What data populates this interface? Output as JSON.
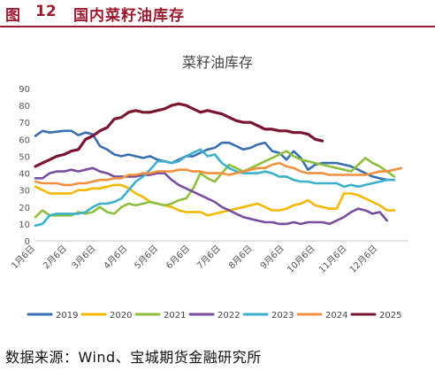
{
  "header": {
    "figure_label": "图",
    "figure_number": "12",
    "figure_title": "国内菜籽油库存"
  },
  "source": "数据来源：Wind、宝城期货金融研究所",
  "chart_data": {
    "type": "line",
    "title": "菜籽油库存",
    "xlabel": "",
    "ylabel": "",
    "ylim": [
      0,
      90
    ],
    "yticks": [
      "0",
      "10",
      "20",
      "30",
      "40",
      "50",
      "60",
      "70",
      "80",
      "90"
    ],
    "xlim": [
      0,
      52
    ],
    "xticks": [
      {
        "label": "1月6日",
        "x": 0
      },
      {
        "label": "2月6日",
        "x": 4.43
      },
      {
        "label": "3月6日",
        "x": 8.43
      },
      {
        "label": "4月6日",
        "x": 12.86
      },
      {
        "label": "5月6日",
        "x": 17.14
      },
      {
        "label": "6月6日",
        "x": 21.57
      },
      {
        "label": "7月6日",
        "x": 25.86
      },
      {
        "label": "8月6日",
        "x": 30.29
      },
      {
        "label": "9月6日",
        "x": 34.71
      },
      {
        "label": "10月6日",
        "x": 39.0
      },
      {
        "label": "11月6日",
        "x": 43.43
      },
      {
        "label": "12月6日",
        "x": 47.71
      }
    ],
    "grid": false,
    "legend_position": "bottom",
    "series": [
      {
        "name": "2019",
        "color": "#3a6fb0",
        "values": [
          62,
          65,
          64,
          64.5,
          65,
          65,
          62.5,
          64,
          63,
          56,
          54,
          51,
          50,
          51,
          50,
          49,
          50,
          48,
          47,
          46,
          48,
          50,
          50,
          52,
          54,
          55,
          58,
          58,
          56,
          54,
          55,
          57,
          58,
          53,
          52,
          48,
          53,
          49,
          42,
          45,
          46,
          46,
          46,
          45,
          44,
          42,
          40,
          38,
          37,
          36,
          36
        ]
      },
      {
        "name": "2020",
        "color": "#f5b800",
        "values": [
          32,
          30,
          28,
          28,
          28,
          28,
          30,
          30,
          31,
          31,
          32,
          33,
          33,
          31,
          28,
          26,
          23,
          22,
          21,
          20,
          18,
          17,
          17,
          17,
          15,
          16,
          17,
          18,
          19,
          20,
          21,
          22,
          20,
          18,
          18,
          19,
          21,
          22,
          24,
          21,
          20,
          19,
          19,
          28,
          28,
          27,
          25,
          23,
          21,
          18,
          18
        ]
      },
      {
        "name": "2021",
        "color": "#8dbf3f",
        "values": [
          14,
          18,
          15,
          15,
          15,
          15,
          17,
          16,
          17,
          20,
          17,
          16,
          20,
          22,
          21,
          22,
          23,
          22,
          21,
          22,
          24,
          25,
          31,
          40,
          37,
          35,
          40,
          45,
          43,
          41,
          43,
          45,
          47,
          49,
          51,
          53,
          50,
          48,
          47,
          46,
          45,
          44,
          43,
          42,
          41,
          45,
          49,
          46,
          44,
          41,
          38
        ]
      },
      {
        "name": "2022",
        "color": "#7a4e9e",
        "values": [
          37,
          37,
          40,
          41,
          41,
          42,
          41,
          42,
          43,
          41,
          40,
          38,
          38,
          38,
          38,
          39,
          39,
          40,
          40,
          36,
          33,
          31,
          29,
          27,
          25,
          23,
          20,
          18,
          16,
          14,
          13,
          12,
          11,
          11,
          10,
          10,
          11,
          10,
          11,
          11,
          11,
          10,
          12,
          14,
          17,
          19,
          18,
          16,
          17,
          12
        ]
      },
      {
        "name": "2023",
        "color": "#3cb1cc",
        "values": [
          9,
          10,
          15,
          16,
          16,
          16,
          16,
          17,
          20,
          22,
          22,
          23,
          25,
          30,
          35,
          38,
          42,
          47,
          47,
          46,
          47,
          50,
          52,
          54,
          50,
          51,
          46,
          43,
          41,
          40,
          40,
          40,
          41,
          40,
          38,
          38,
          36,
          35,
          35,
          34,
          34,
          34,
          34,
          32,
          33,
          32,
          33,
          34,
          35,
          36,
          36
        ]
      },
      {
        "name": "2024",
        "color": "#f0913f",
        "values": [
          35,
          34,
          34,
          34,
          33,
          33,
          34,
          34,
          35,
          36,
          36,
          37,
          37,
          39,
          39,
          40,
          40,
          41,
          41,
          41,
          42,
          42,
          41,
          41,
          40,
          40,
          40,
          39,
          40,
          41,
          42,
          43,
          43,
          45,
          46,
          44,
          43,
          41,
          40,
          40,
          40,
          39,
          39,
          39,
          39,
          39,
          39,
          40,
          41,
          41,
          42,
          43
        ]
      },
      {
        "name": "2025",
        "color": "#7b1430",
        "values": [
          44,
          46,
          48,
          50,
          51,
          53,
          54,
          60,
          62,
          65,
          67,
          72,
          73,
          76,
          77,
          76,
          76,
          77,
          78,
          80,
          81,
          80,
          78,
          76,
          77,
          76,
          75,
          73,
          71,
          70,
          70,
          68,
          66,
          66,
          65,
          65,
          64,
          64,
          63,
          60,
          59
        ]
      }
    ]
  }
}
